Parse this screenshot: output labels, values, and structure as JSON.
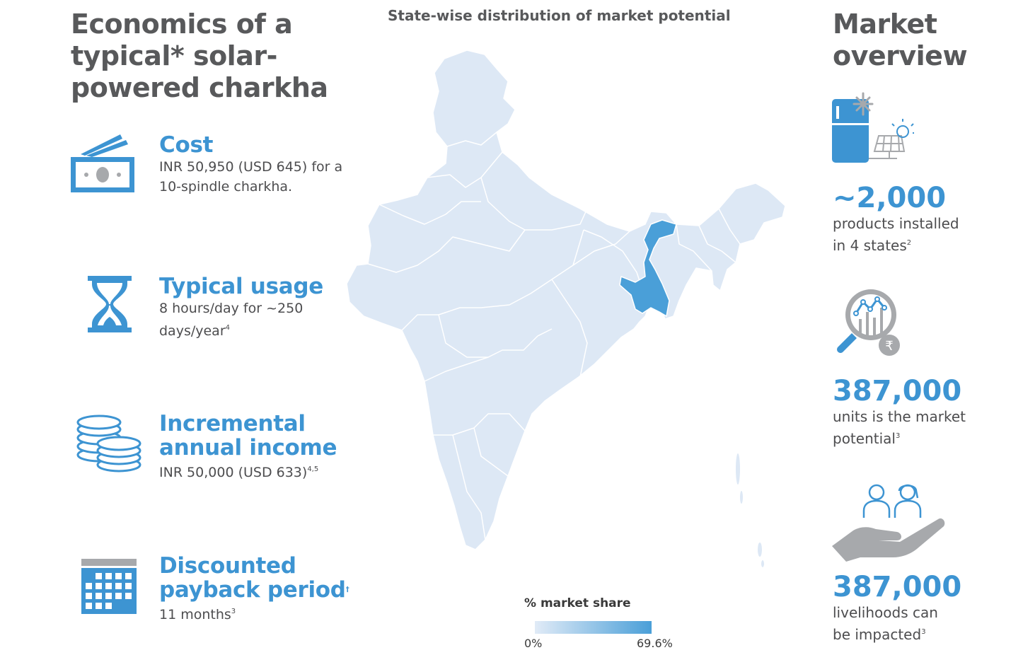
{
  "left": {
    "title": "Economics of a typical* solar-powered charkha",
    "items": [
      {
        "title": "Cost",
        "desc": "INR 50,950 (USD 645) for a 10-spindle charkha.",
        "sup": ""
      },
      {
        "title": "Typical usage",
        "desc": "8 hours/day for ~250 days/year",
        "sup": "4"
      },
      {
        "title": "Incremental annual income",
        "desc": "INR 50,000 (USD 633)",
        "sup": "4,5"
      },
      {
        "title": "Discounted payback period",
        "title_sup": "†",
        "desc": "11 months",
        "sup": "3"
      }
    ],
    "icons": [
      "money-icon",
      "hourglass-icon",
      "coins-icon",
      "calendar-icon"
    ]
  },
  "map": {
    "title": "State-wise distribution of market potential",
    "legend_title": "% market share",
    "legend_min": "0%",
    "legend_max": "69.6%",
    "color_low": "#dde8f5",
    "color_high": "#4a9fd8"
  },
  "right": {
    "title": "Market overview",
    "stats": [
      {
        "value": "~2,000",
        "desc": "products installed in 4 states",
        "sup": "2",
        "icon": "solar-fridge-icon"
      },
      {
        "value": "387,000",
        "desc": "units is the market potential",
        "sup": "3",
        "icon": "market-analysis-icon"
      },
      {
        "value": "387,000",
        "desc": "livelihoods can be impacted",
        "sup": "3",
        "icon": "hand-people-icon"
      }
    ]
  },
  "colors": {
    "accent": "#3d94d2",
    "heading": "#58595b",
    "icon_gray": "#a7a9ac"
  }
}
